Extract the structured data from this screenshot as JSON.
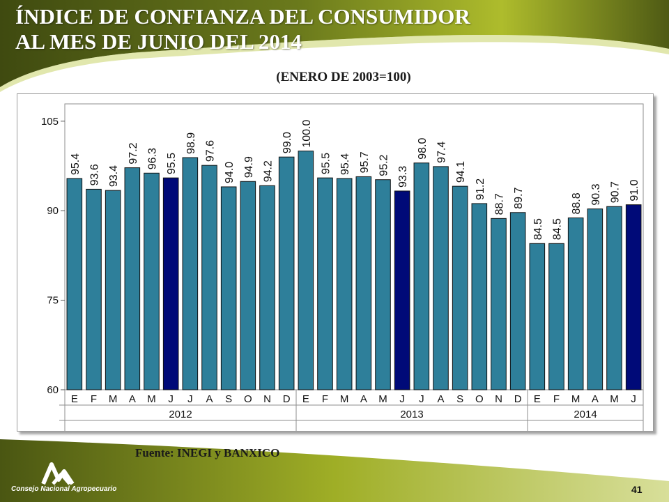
{
  "slide": {
    "title_line1": "ÍNDICE DE CONFIANZA DEL CONSUMIDOR",
    "title_line2": "AL MES DE JUNIO DEL 2014",
    "subtitle": "(ENERO DE 2003=100)",
    "source": "Fuente: INEGI y BANXICO",
    "logo_text": "Consejo Nacional Agropecuario",
    "page_number": "41"
  },
  "colors": {
    "bar": "#2e7f9a",
    "bar_highlight": "#000a78",
    "title_band": "#5a6519",
    "title_band_light": "#a7b628"
  },
  "chart_data": {
    "type": "bar",
    "title": "",
    "xlabel": "",
    "ylabel": "",
    "ylim": [
      60,
      105
    ],
    "yticks": [
      60,
      75,
      90,
      105
    ],
    "grid": false,
    "categories": [
      "E",
      "F",
      "M",
      "A",
      "M",
      "J",
      "J",
      "A",
      "S",
      "O",
      "N",
      "D",
      "E",
      "F",
      "M",
      "A",
      "M",
      "J",
      "J",
      "A",
      "S",
      "O",
      "N",
      "D",
      "E",
      "F",
      "M",
      "A",
      "M",
      "J"
    ],
    "values": [
      95.4,
      93.6,
      93.4,
      97.2,
      96.3,
      95.5,
      98.9,
      97.6,
      94.0,
      94.9,
      94.2,
      99.0,
      100.0,
      95.5,
      95.4,
      95.7,
      95.2,
      93.3,
      98.0,
      97.4,
      94.1,
      91.2,
      88.7,
      89.7,
      84.5,
      84.5,
      88.8,
      90.3,
      90.7,
      91.0
    ],
    "value_labels": [
      "95.4",
      "93.6",
      "93.4",
      "97.2",
      "96.3",
      "95.5",
      "98.9",
      "97.6",
      "94.0",
      "94.9",
      "94.2",
      "99.0",
      "100.0",
      "95.5",
      "95.4",
      "95.7",
      "95.2",
      "93.3",
      "98.0",
      "97.4",
      "94.1",
      "91.2",
      "88.7",
      "89.7",
      "84.5",
      "84.5",
      "88.8",
      "90.3",
      "90.7",
      "91.0"
    ],
    "highlight_indices": [
      5,
      17,
      29
    ],
    "groups": [
      {
        "label": "2012",
        "start": 0,
        "count": 12
      },
      {
        "label": "2013",
        "start": 12,
        "count": 12
      },
      {
        "label": "2014",
        "start": 24,
        "count": 6
      }
    ]
  }
}
